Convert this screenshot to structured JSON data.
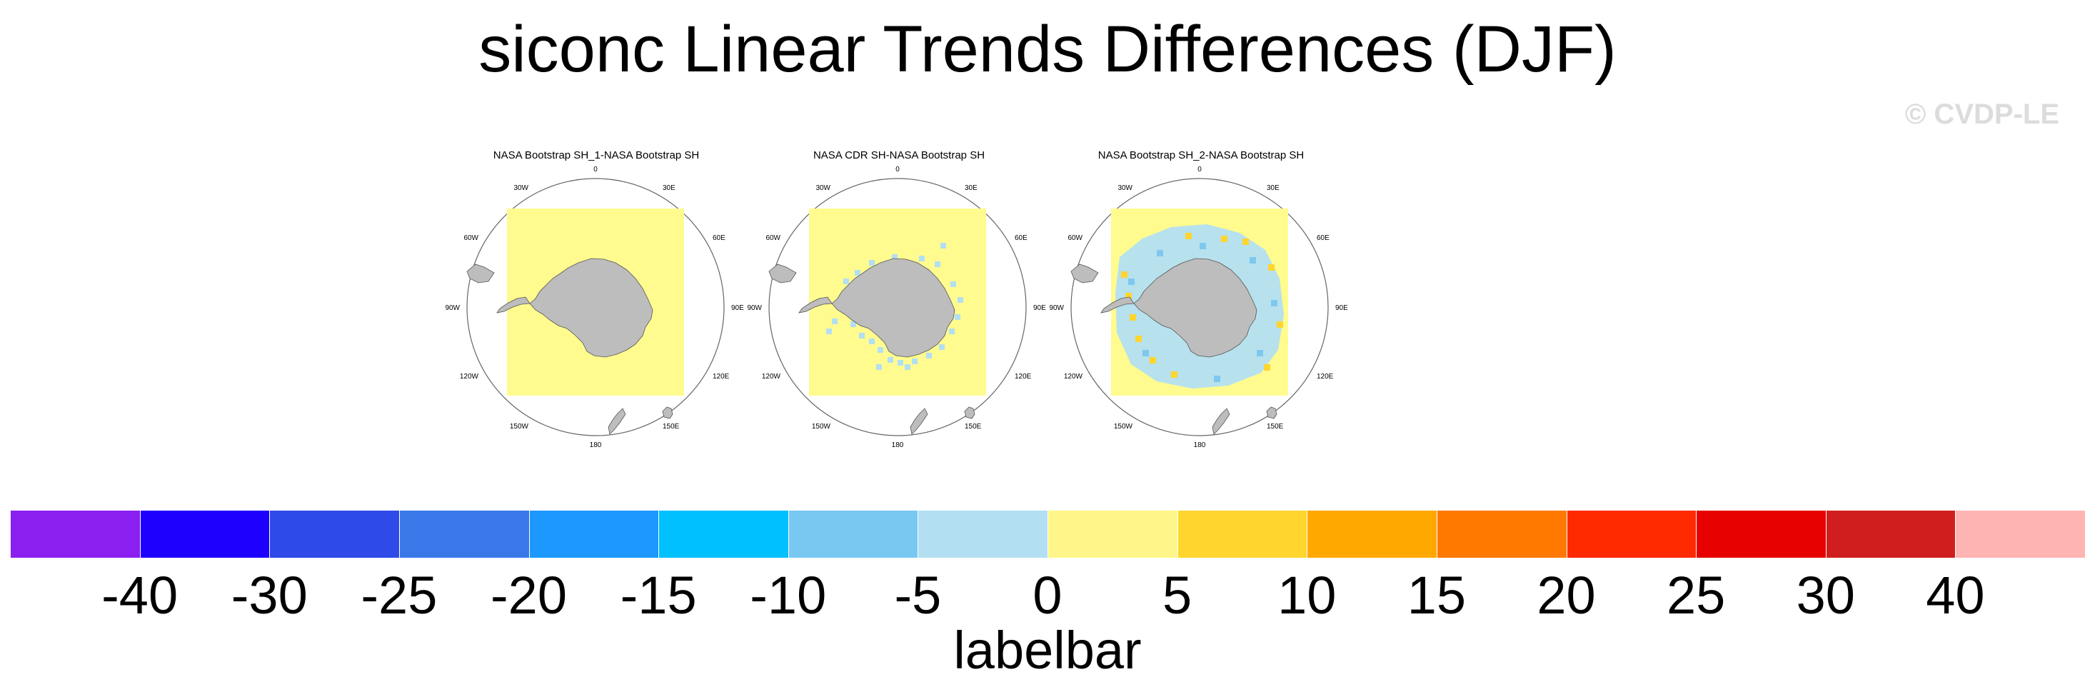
{
  "title": "siconc Linear Trends Differences (DJF)",
  "watermark": "© CVDP-LE",
  "colors": {
    "land": "#bdbdbd",
    "coast": "#555555",
    "zero_band": "#fffb8f",
    "neg_small": "#b3dff2",
    "neg_med": "#7ec8f0",
    "pos_small": "#ffd52e"
  },
  "chart_data": [
    {
      "type": "heatmap",
      "title": "NASA Bootstrap SH_1-NASA Bootstrap SH",
      "projection": "polar-stereographic-south",
      "longitude_labels": [
        "0",
        "30E",
        "60E",
        "90E",
        "120E",
        "150E",
        "180",
        "150W",
        "120W",
        "90W",
        "60W",
        "30W"
      ],
      "dominant_value_range": [
        0,
        5
      ]
    },
    {
      "type": "heatmap",
      "title": "NASA CDR SH-NASA Bootstrap SH",
      "projection": "polar-stereographic-south",
      "longitude_labels": [
        "0",
        "30E",
        "60E",
        "90E",
        "120E",
        "150E",
        "180",
        "150W",
        "120W",
        "90W",
        "60W",
        "30W"
      ],
      "dominant_value_range": [
        0,
        5
      ],
      "notes_values": [
        -5,
        0
      ]
    },
    {
      "type": "heatmap",
      "title": "NASA Bootstrap SH_2-NASA Bootstrap SH",
      "projection": "polar-stereographic-south",
      "longitude_labels": [
        "0",
        "30E",
        "60E",
        "90E",
        "120E",
        "150E",
        "180",
        "150W",
        "120W",
        "90W",
        "60W",
        "30W"
      ],
      "dominant_value_range": [
        0,
        5
      ],
      "notes_values": [
        -10,
        -5,
        5,
        10
      ]
    }
  ],
  "labelbar": {
    "title": "labelbar",
    "ticks": [
      "-40",
      "-30",
      "-25",
      "-20",
      "-15",
      "-10",
      "-5",
      "0",
      "5",
      "10",
      "15",
      "20",
      "25",
      "30",
      "40"
    ],
    "colors": [
      "#8a1ff0",
      "#1e00ff",
      "#2e4ae8",
      "#3878e8",
      "#1c98ff",
      "#00c0ff",
      "#78c8f2",
      "#b3dff2",
      "#fff68a",
      "#ffd52e",
      "#ffa800",
      "#ff7800",
      "#ff2a00",
      "#e60000",
      "#d01e1e",
      "#ffb4b4"
    ]
  }
}
